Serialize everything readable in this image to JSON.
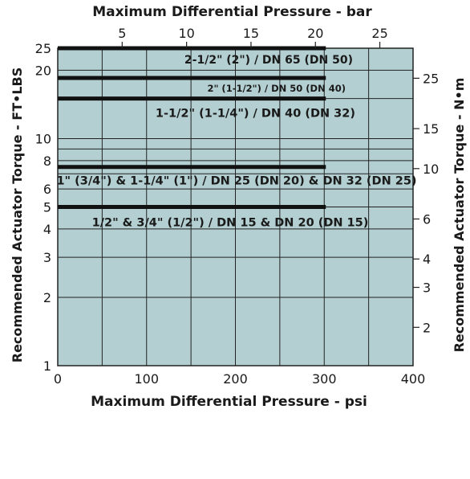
{
  "chart_data": {
    "type": "line",
    "title_top": "Maximum Differential Pressure - bar",
    "xlabel": "Maximum Differential Pressure - psi",
    "ylabel_left": "Recommended Actuator Torque - FT•LBS",
    "ylabel_right": "Recommended Actuator Torque - N•m",
    "x_range": [
      0,
      400
    ],
    "y_left_scale": "log",
    "y_left_range": [
      1,
      25
    ],
    "x_ticks": [
      "0",
      "100",
      "200",
      "300",
      "400"
    ],
    "x_tick_values": [
      0,
      100,
      200,
      300,
      400
    ],
    "bar_ticks": [
      "5",
      "10",
      "15",
      "20",
      "25"
    ],
    "bar_tick_values": [
      5,
      10,
      15,
      20,
      25
    ],
    "y_left_ticks": [
      "1",
      "2",
      "3",
      "4",
      "5",
      "6",
      "8",
      "10",
      "20",
      "25"
    ],
    "y_left_tick_values": [
      1,
      2,
      3,
      4,
      5,
      6,
      8,
      10,
      20,
      25
    ],
    "y_right_ticks": [
      "2",
      "3",
      "4",
      "6",
      "10",
      "15",
      "25"
    ],
    "y_right_tick_values": [
      2,
      3,
      4,
      6,
      10,
      15,
      25
    ],
    "grid": true,
    "colors": {
      "plot_bg": "#b3cfd1",
      "grid": "#222222",
      "series": "#111111"
    },
    "series": [
      {
        "name": "2-1/2\" (2\") / DN 65 (DN 50)",
        "x": [
          0,
          300
        ],
        "y": [
          25,
          25
        ]
      },
      {
        "name": "2\" (1-1/2\") / DN 50 (DN 40)",
        "x": [
          0,
          300
        ],
        "y": [
          18.5,
          18.5
        ]
      },
      {
        "name": "1-1/2\" (1-1/4\") / DN 40 (DN 32)",
        "x": [
          0,
          300
        ],
        "y": [
          15,
          15
        ]
      },
      {
        "name": "1\" (3/4\") & 1-1/4\" (1\") / DN 25 (DN 20) & DN 32 (DN 25)",
        "x": [
          0,
          300
        ],
        "y": [
          7.5,
          7.5
        ]
      },
      {
        "name": "1/2\" & 3/4\" (1/2\") / DN 15 & DN 20 (DN 15)",
        "x": [
          0,
          300
        ],
        "y": [
          5,
          5
        ]
      }
    ]
  }
}
